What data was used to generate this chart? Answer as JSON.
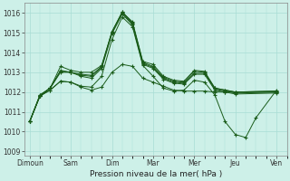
{
  "xlabel": "Pression niveau de la mer( hPa )",
  "background_color": "#cdf0e8",
  "grid_color": "#a8ddd5",
  "line_color": "#1a5c1a",
  "ylim": [
    1008.8,
    1016.5
  ],
  "yticks": [
    1009,
    1010,
    1011,
    1012,
    1013,
    1014,
    1015,
    1016
  ],
  "x_labels": [
    "Dimoun",
    "Sam",
    "Dim",
    "Mar",
    "Mer",
    "Jeu",
    "Ven"
  ],
  "x_positions": [
    0,
    24,
    48,
    72,
    96,
    120,
    144
  ],
  "xlim": [
    -3,
    150
  ],
  "series": [
    [
      1010.5,
      1011.8,
      1012.2,
      1013.3,
      1013.1,
      1013.0,
      1013.0,
      1013.35,
      1015.05,
      1016.05,
      1015.55,
      1013.55,
      1013.4,
      1012.8,
      1012.6,
      1012.55,
      1013.1,
      1013.05,
      1012.2,
      1012.1,
      1012.0,
      1012.0
    ],
    [
      1010.5,
      1011.85,
      1012.2,
      1013.1,
      1013.0,
      1012.9,
      1012.85,
      1013.3,
      1015.05,
      1016.05,
      1015.5,
      1013.5,
      1013.3,
      1012.75,
      1012.55,
      1012.5,
      1013.05,
      1013.0,
      1012.2,
      1012.1,
      1012.0,
      1012.05
    ],
    [
      1010.5,
      1011.85,
      1012.2,
      1013.05,
      1013.0,
      1012.85,
      1012.8,
      1013.25,
      1015.0,
      1016.0,
      1015.45,
      1013.45,
      1013.25,
      1012.7,
      1012.5,
      1012.45,
      1012.95,
      1012.95,
      1012.15,
      1012.05,
      1011.95,
      1012.0
    ],
    [
      1010.5,
      1011.8,
      1012.2,
      1013.0,
      1013.0,
      1012.8,
      1012.7,
      1013.2,
      1014.95,
      1015.95,
      1015.4,
      1013.4,
      1013.2,
      1012.65,
      1012.45,
      1012.4,
      1012.9,
      1012.9,
      1012.1,
      1012.0,
      1011.9,
      1011.95
    ],
    [
      1010.5,
      1011.8,
      1012.1,
      1012.55,
      1012.5,
      1012.3,
      1012.25,
      1012.8,
      1014.65,
      1015.8,
      1015.3,
      1013.35,
      1012.8,
      1012.2,
      1012.05,
      1012.1,
      1012.6,
      1012.5,
      1011.85,
      1010.5,
      1009.85,
      1009.7,
      1010.7,
      1012.1
    ],
    [
      1010.5,
      1011.8,
      1012.1,
      1012.55,
      1012.5,
      1012.25,
      1012.1,
      1012.25,
      1013.0,
      1013.4,
      1013.3,
      1012.7,
      1012.5,
      1012.3,
      1012.1,
      1012.05,
      1012.05,
      1012.05,
      1012.0,
      1012.0,
      1012.0,
      1012.05
    ]
  ],
  "series_x": [
    [
      0,
      6,
      12,
      18,
      24,
      30,
      36,
      42,
      48,
      54,
      60,
      66,
      72,
      78,
      84,
      90,
      96,
      102,
      108,
      114,
      120,
      144
    ],
    [
      0,
      6,
      12,
      18,
      24,
      30,
      36,
      42,
      48,
      54,
      60,
      66,
      72,
      78,
      84,
      90,
      96,
      102,
      108,
      114,
      120,
      144
    ],
    [
      0,
      6,
      12,
      18,
      24,
      30,
      36,
      42,
      48,
      54,
      60,
      66,
      72,
      78,
      84,
      90,
      96,
      102,
      108,
      114,
      120,
      144
    ],
    [
      0,
      6,
      12,
      18,
      24,
      30,
      36,
      42,
      48,
      54,
      60,
      66,
      72,
      78,
      84,
      90,
      96,
      102,
      108,
      114,
      120,
      144
    ],
    [
      0,
      6,
      12,
      18,
      24,
      30,
      36,
      42,
      48,
      54,
      60,
      66,
      72,
      78,
      84,
      90,
      96,
      102,
      108,
      114,
      120,
      126,
      132,
      144
    ],
    [
      0,
      6,
      12,
      18,
      24,
      30,
      36,
      42,
      48,
      54,
      60,
      66,
      72,
      78,
      84,
      90,
      96,
      102,
      108,
      114,
      120,
      144
    ]
  ]
}
